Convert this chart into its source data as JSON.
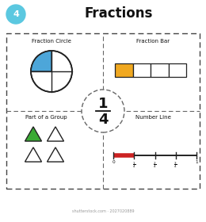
{
  "title": "Fractions",
  "badge_number": "4",
  "badge_color": "#5bc8e0",
  "fraction_numerator": "1",
  "fraction_denominator": "4",
  "section_labels": [
    "Fraction Circle",
    "Fraction Bar",
    "Part of a Group",
    "Number Line"
  ],
  "circle_filled_color": "#4da6d9",
  "circle_empty_color": "#ffffff",
  "circle_border_color": "#222222",
  "bar_filled_color": "#f0a820",
  "bar_empty_color": "#ffffff",
  "bar_border_color": "#222222",
  "triangle_filled_color": "#3aaa35",
  "triangle_empty_color": "#ffffff",
  "triangle_border_color": "#222222",
  "number_line_red": "#cc2222",
  "number_line_black": "#222222",
  "bg_color": "#ffffff",
  "outer_box_color": "#444444",
  "center_circle_color": "#ffffff",
  "center_circle_border": "#666666",
  "watermark": "shutterstock.com · 2027020889"
}
